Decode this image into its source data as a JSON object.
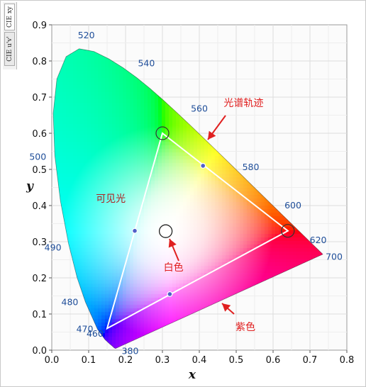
{
  "side_tabs": [
    {
      "label": "CIE xy",
      "active": true
    },
    {
      "label": "CIE u'v'",
      "active": false
    }
  ],
  "chart_data": {
    "type": "scatter",
    "xlabel": "x",
    "ylabel": "y",
    "xlim": [
      0.0,
      0.8
    ],
    "ylim": [
      0.0,
      0.9
    ],
    "grid": true,
    "x_ticks": [
      "0.0",
      "0.1",
      "0.2",
      "0.3",
      "0.4",
      "0.5",
      "0.6",
      "0.7",
      "0.8"
    ],
    "y_ticks": [
      "0.0",
      "0.1",
      "0.2",
      "0.3",
      "0.4",
      "0.5",
      "0.6",
      "0.7",
      "0.8",
      "0.9"
    ],
    "spectral_locus": [
      {
        "x": 0.1741,
        "y": 0.005
      },
      {
        "x": 0.1738,
        "y": 0.0049
      },
      {
        "x": 0.1733,
        "y": 0.0048
      },
      {
        "x": 0.1726,
        "y": 0.0048
      },
      {
        "x": 0.1714,
        "y": 0.0051
      },
      {
        "x": 0.1689,
        "y": 0.0069
      },
      {
        "x": 0.1644,
        "y": 0.0109
      },
      {
        "x": 0.1566,
        "y": 0.0177
      },
      {
        "x": 0.144,
        "y": 0.0297
      },
      {
        "x": 0.1241,
        "y": 0.0578
      },
      {
        "x": 0.0913,
        "y": 0.1327
      },
      {
        "x": 0.0687,
        "y": 0.2007
      },
      {
        "x": 0.0454,
        "y": 0.295
      },
      {
        "x": 0.0235,
        "y": 0.4127
      },
      {
        "x": 0.0082,
        "y": 0.5384
      },
      {
        "x": 0.0039,
        "y": 0.6548
      },
      {
        "x": 0.0139,
        "y": 0.7502
      },
      {
        "x": 0.0389,
        "y": 0.812
      },
      {
        "x": 0.0743,
        "y": 0.8338
      },
      {
        "x": 0.1142,
        "y": 0.8262
      },
      {
        "x": 0.1547,
        "y": 0.8059
      },
      {
        "x": 0.1929,
        "y": 0.7816
      },
      {
        "x": 0.2296,
        "y": 0.7543
      },
      {
        "x": 0.2658,
        "y": 0.7243
      },
      {
        "x": 0.3016,
        "y": 0.6923
      },
      {
        "x": 0.3373,
        "y": 0.6589
      },
      {
        "x": 0.3731,
        "y": 0.6245
      },
      {
        "x": 0.4087,
        "y": 0.5896
      },
      {
        "x": 0.4441,
        "y": 0.5547
      },
      {
        "x": 0.4788,
        "y": 0.5202
      },
      {
        "x": 0.5125,
        "y": 0.4866
      },
      {
        "x": 0.5448,
        "y": 0.4544
      },
      {
        "x": 0.5752,
        "y": 0.4242
      },
      {
        "x": 0.6029,
        "y": 0.3965
      },
      {
        "x": 0.627,
        "y": 0.3725
      },
      {
        "x": 0.6482,
        "y": 0.3514
      },
      {
        "x": 0.6658,
        "y": 0.334
      },
      {
        "x": 0.6801,
        "y": 0.3197
      },
      {
        "x": 0.6915,
        "y": 0.3083
      },
      {
        "x": 0.7006,
        "y": 0.2993
      },
      {
        "x": 0.7079,
        "y": 0.292
      },
      {
        "x": 0.714,
        "y": 0.2859
      },
      {
        "x": 0.719,
        "y": 0.2809
      },
      {
        "x": 0.723,
        "y": 0.277
      },
      {
        "x": 0.726,
        "y": 0.274
      },
      {
        "x": 0.7283,
        "y": 0.2717
      },
      {
        "x": 0.73,
        "y": 0.27
      },
      {
        "x": 0.7311,
        "y": 0.2689
      },
      {
        "x": 0.732,
        "y": 0.268
      },
      {
        "x": 0.7327,
        "y": 0.2673
      },
      {
        "x": 0.7334,
        "y": 0.2666
      },
      {
        "x": 0.734,
        "y": 0.266
      },
      {
        "x": 0.7344,
        "y": 0.2656
      },
      {
        "x": 0.7346,
        "y": 0.2654
      },
      {
        "x": 0.7347,
        "y": 0.2653
      }
    ],
    "wavelength_labels": [
      {
        "text": "380",
        "x": 0.1741,
        "y": 0.005
      },
      {
        "text": "460",
        "x": 0.144,
        "y": 0.0297
      },
      {
        "text": "470",
        "x": 0.1241,
        "y": 0.0578
      },
      {
        "text": "480",
        "x": 0.0913,
        "y": 0.1327
      },
      {
        "text": "490",
        "x": 0.0454,
        "y": 0.295
      },
      {
        "text": "500",
        "x": 0.0082,
        "y": 0.5384
      },
      {
        "text": "520",
        "x": 0.0743,
        "y": 0.8338
      },
      {
        "text": "540",
        "x": 0.2296,
        "y": 0.7543
      },
      {
        "text": "560",
        "x": 0.3731,
        "y": 0.6245
      },
      {
        "text": "580",
        "x": 0.5125,
        "y": 0.4866
      },
      {
        "text": "600",
        "x": 0.627,
        "y": 0.3725
      },
      {
        "text": "620",
        "x": 0.6915,
        "y": 0.3083
      },
      {
        "text": "700",
        "x": 0.7347,
        "y": 0.2653
      }
    ],
    "gamut_triangle": {
      "vertices": [
        {
          "x": 0.64,
          "y": 0.33
        },
        {
          "x": 0.3,
          "y": 0.6
        },
        {
          "x": 0.15,
          "y": 0.06
        }
      ],
      "edge_points": [
        {
          "x": 0.41,
          "y": 0.51
        },
        {
          "x": 0.225,
          "y": 0.33
        },
        {
          "x": 0.32,
          "y": 0.155
        }
      ]
    },
    "white_point": {
      "x": 0.3127,
      "y": 0.329
    },
    "annotations": [
      {
        "text": "光谱轨迹",
        "x": 0.52,
        "y": 0.675
      },
      {
        "text": "可见光",
        "x": 0.16,
        "y": 0.41
      },
      {
        "text": "白色",
        "x": 0.33,
        "y": 0.22
      },
      {
        "text": "紫色",
        "x": 0.525,
        "y": 0.055
      }
    ]
  }
}
